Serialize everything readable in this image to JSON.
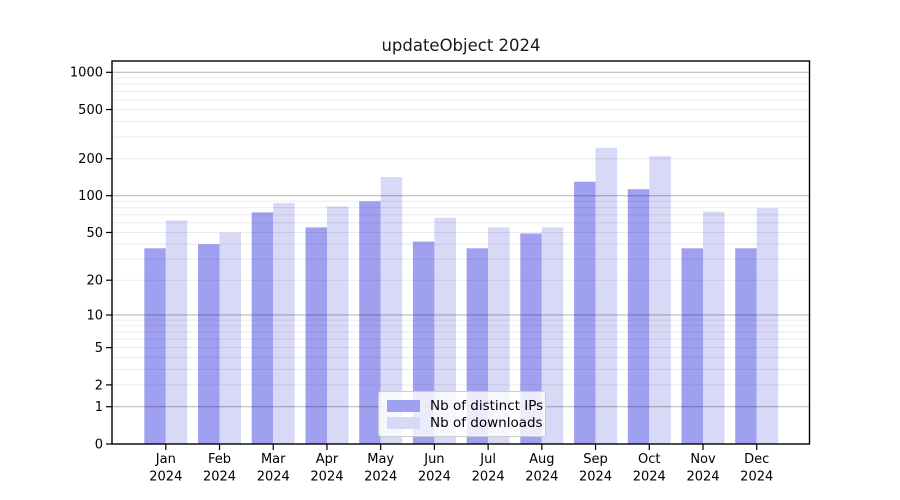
{
  "title": "updateObject 2024",
  "colors": {
    "distinct_ips_bar": "#a0a0f0",
    "downloads_bar": "#d8d8f7",
    "major_gridline": "#b3b3b3",
    "minor_gridline": "#ececec",
    "axis_line": "#000000",
    "tick_text": "#000000"
  },
  "chart_data": {
    "type": "bar",
    "scale": "log1p (symlog-like: 0 then log ticks 1,2,5,10,20,50,100,200,500,1000)",
    "title": "updateObject 2024",
    "xlabel": "",
    "ylabel": "",
    "categories": [
      "Jan",
      "Feb",
      "Mar",
      "Apr",
      "May",
      "Jun",
      "Jul",
      "Aug",
      "Sep",
      "Oct",
      "Nov",
      "Dec"
    ],
    "tick_year": "2024",
    "series": [
      {
        "name": "Nb of distinct IPs",
        "color": "#a0a0f0",
        "values": [
          37,
          40,
          73,
          55,
          90,
          42,
          37,
          49,
          130,
          113,
          37,
          37
        ]
      },
      {
        "name": "Nb of downloads",
        "color": "#d8d8f7",
        "values": [
          63,
          50,
          87,
          82,
          142,
          66,
          55,
          55,
          245,
          210,
          74,
          79
        ]
      }
    ],
    "yticks": [
      0,
      1,
      2,
      5,
      10,
      20,
      50,
      100,
      200,
      500,
      1000
    ],
    "yticklabels": [
      "0",
      "1",
      "2",
      "5",
      "10",
      "20",
      "50",
      "100",
      "200",
      "500",
      "1000"
    ],
    "ylim": [
      0,
      1150
    ],
    "grid": "horizontal major gridlines at 1,10,100,1000; faint minor log gridlines; drawn over bars",
    "legend_position": "lower center inside plot"
  }
}
